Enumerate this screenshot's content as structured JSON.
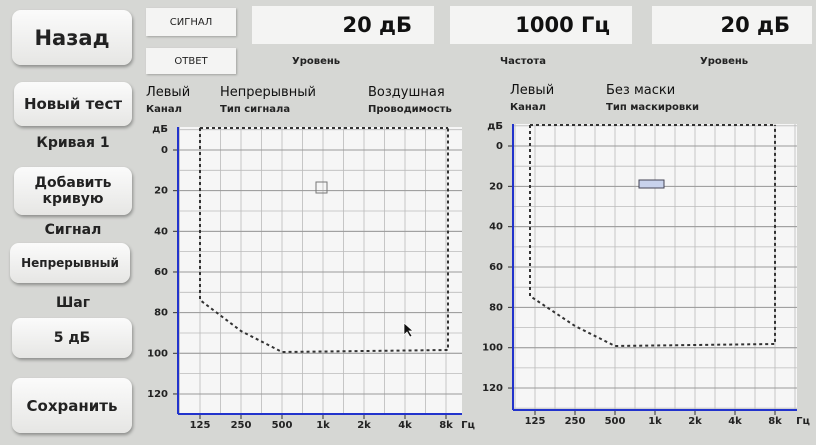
{
  "nav": {
    "back": "Назад",
    "new_test": "Новый тест",
    "curve": "Кривая 1",
    "add_curve": "Добавить кривую",
    "signal_label": "Сигнал",
    "signal_value": "Непрерывный",
    "step_label": "Шаг",
    "step_value": "5 дБ",
    "save": "Сохранить"
  },
  "top": {
    "signal_button": "СИГНАЛ",
    "response_button": "ОТВЕТ",
    "displays": [
      {
        "value": "20 дБ",
        "label": "Уровень"
      },
      {
        "value": "1000 Гц",
        "label": "Частота"
      },
      {
        "value": "20 дБ",
        "label": "Уровень"
      }
    ]
  },
  "info": [
    {
      "value": "Левый",
      "label": "Канал"
    },
    {
      "value": "Непрерывный",
      "label": "Тип сигнала"
    },
    {
      "value": "Воздушная",
      "label": "Проводимость"
    },
    {
      "value": "Левый",
      "label": "Канал"
    },
    {
      "value": "Без маски",
      "label": "Тип маскировки"
    }
  ],
  "charts": [
    {
      "y_unit": "дБ",
      "x_unit": "Гц",
      "yticks": [
        0,
        20,
        40,
        60,
        80,
        100,
        120
      ],
      "xticks": [
        "125",
        "250",
        "500",
        "1k",
        "2k",
        "4k",
        "8k"
      ]
    },
    {
      "y_unit": "дБ",
      "x_unit": "Гц",
      "yticks": [
        0,
        20,
        40,
        60,
        80,
        100,
        120
      ],
      "xticks": [
        "125",
        "250",
        "500",
        "1k",
        "2k",
        "4k",
        "8k"
      ]
    }
  ]
}
